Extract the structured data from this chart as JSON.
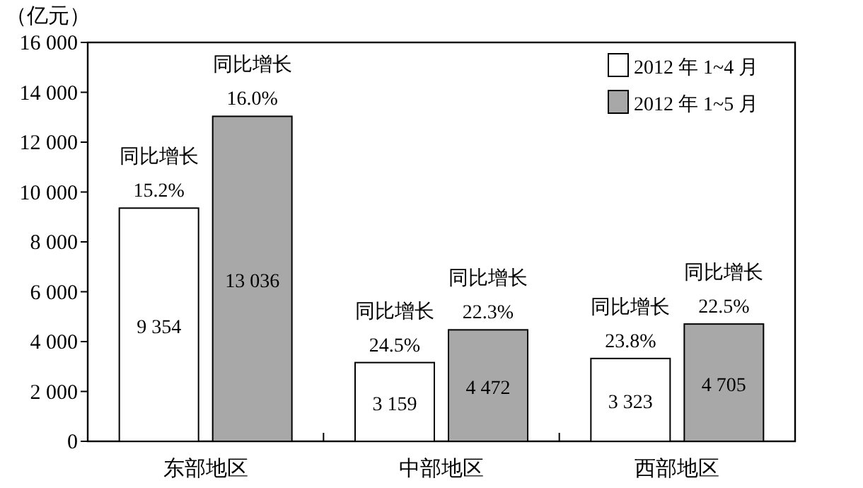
{
  "chart_data": {
    "type": "bar",
    "ylabel": "（亿元）",
    "categories": [
      "东部地区",
      "中部地区",
      "西部地区"
    ],
    "series": [
      {
        "name": "2012 年 1~4 月",
        "color": "#ffffff",
        "values": [
          9354,
          3159,
          3323
        ],
        "value_labels": [
          "9 354",
          "3 159",
          "3 323"
        ]
      },
      {
        "name": "2012 年 1~5 月",
        "color": "#a8a8a8",
        "values": [
          13036,
          4472,
          4705
        ],
        "value_labels": [
          "13 036",
          "4 472",
          "4 705"
        ]
      }
    ],
    "ylim": [
      0,
      16000
    ],
    "yticks": [
      {
        "value": 0,
        "label": "0"
      },
      {
        "value": 2000,
        "label": "2 000"
      },
      {
        "value": 4000,
        "label": "4 000"
      },
      {
        "value": 6000,
        "label": "6 000"
      },
      {
        "value": 8000,
        "label": "8 000"
      },
      {
        "value": 10000,
        "label": "10 000"
      },
      {
        "value": 12000,
        "label": "12 000"
      },
      {
        "value": 14000,
        "label": "14 000"
      },
      {
        "value": 16000,
        "label": "16 000"
      }
    ],
    "annotations": [
      "同比增长\n15.2%",
      "同比增长\n16.0%",
      "同比增长\n24.5%",
      "同比增长\n22.3%",
      "同比增长\n23.8%",
      "同比增长\n22.5%"
    ],
    "legend": "top right",
    "grid": false
  }
}
